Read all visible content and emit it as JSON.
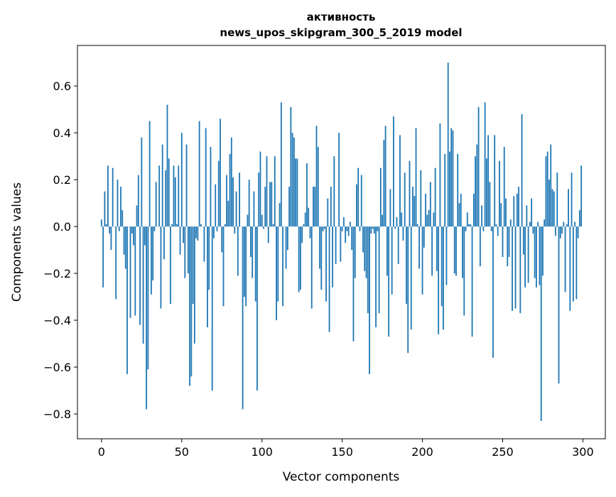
{
  "chart_data": {
    "type": "bar",
    "title": "активность",
    "subtitle": "news_upos_skipgram_300_5_2019 model",
    "xlabel": "Vector components",
    "ylabel": "Components values",
    "xlim": [
      -15,
      314
    ],
    "ylim": [
      -0.906,
      0.773
    ],
    "xticks": [
      0,
      50,
      100,
      150,
      200,
      250,
      300
    ],
    "xtick_labels": [
      "0",
      "50",
      "100",
      "150",
      "200",
      "250",
      "300"
    ],
    "yticks": [
      -0.8,
      -0.6,
      -0.4,
      -0.2,
      0.0,
      0.2,
      0.4,
      0.6
    ],
    "ytick_labels": [
      "−0.8",
      "−0.6",
      "−0.4",
      "−0.2",
      "0.0",
      "0.2",
      "0.4",
      "0.6"
    ],
    "grid": false,
    "color": "#1f77b4",
    "values": [
      0.03,
      -0.26,
      0.15,
      0.01,
      0.26,
      -0.03,
      -0.1,
      0.25,
      0.0,
      -0.31,
      0.2,
      -0.02,
      0.17,
      0.07,
      -0.12,
      -0.18,
      -0.63,
      0.0,
      -0.39,
      -0.03,
      -0.08,
      -0.38,
      0.09,
      0.22,
      -0.42,
      0.38,
      -0.5,
      -0.08,
      -0.78,
      -0.61,
      0.45,
      -0.29,
      -0.23,
      -0.02,
      0.19,
      0.0,
      0.26,
      -0.35,
      0.35,
      -0.14,
      0.24,
      0.52,
      0.29,
      -0.33,
      0.01,
      0.26,
      0.21,
      0.01,
      0.26,
      -0.12,
      0.4,
      -0.07,
      -0.22,
      0.35,
      -0.2,
      -0.68,
      -0.64,
      -0.33,
      -0.5,
      -0.05,
      -0.06,
      0.45,
      0.01,
      0.0,
      -0.15,
      0.42,
      -0.43,
      -0.27,
      0.34,
      -0.7,
      -0.05,
      0.18,
      -0.02,
      0.28,
      0.46,
      -0.11,
      -0.34,
      0.01,
      0.22,
      0.11,
      0.31,
      0.38,
      0.21,
      -0.03,
      0.15,
      -0.21,
      0.23,
      0.0,
      -0.78,
      -0.3,
      -0.34,
      0.05,
      0.2,
      -0.13,
      -0.22,
      0.15,
      -0.32,
      -0.7,
      0.23,
      0.32,
      0.05,
      -0.01,
      0.17,
      0.3,
      -0.07,
      0.19,
      0.19,
      0.01,
      0.3,
      -0.4,
      -0.32,
      0.1,
      0.53,
      -0.34,
      0.0,
      -0.18,
      -0.1,
      0.17,
      0.51,
      0.4,
      0.38,
      0.29,
      0.29,
      -0.28,
      -0.27,
      -0.07,
      0.01,
      0.06,
      0.27,
      0.08,
      -0.05,
      -0.35,
      0.17,
      0.17,
      0.43,
      0.34,
      -0.18,
      -0.27,
      -0.02,
      -0.01,
      -0.32,
      0.12,
      -0.45,
      0.17,
      -0.26,
      0.3,
      -0.16,
      0.0,
      0.4,
      -0.15,
      -0.02,
      0.04,
      -0.07,
      -0.02,
      -0.04,
      0.02,
      -0.1,
      -0.49,
      -0.22,
      0.18,
      0.25,
      -0.02,
      0.22,
      -0.11,
      -0.19,
      -0.22,
      -0.37,
      -0.63,
      -0.03,
      -0.01,
      -0.03,
      -0.43,
      -0.02,
      -0.37,
      0.25,
      0.05,
      0.37,
      0.43,
      -0.21,
      -0.47,
      0.16,
      -0.29,
      0.47,
      -0.01,
      0.04,
      -0.16,
      0.39,
      0.06,
      -0.06,
      0.23,
      -0.33,
      -0.54,
      0.28,
      -0.44,
      0.17,
      0.13,
      0.42,
      0.01,
      -0.18,
      0.24,
      -0.29,
      -0.09,
      0.14,
      0.05,
      0.07,
      0.19,
      -0.21,
      0.06,
      0.25,
      -0.19,
      -0.46,
      0.44,
      -0.34,
      -0.44,
      0.31,
      -0.25,
      0.7,
      0.32,
      0.42,
      0.41,
      -0.2,
      -0.21,
      0.31,
      0.1,
      0.14,
      -0.22,
      -0.38,
      -0.02,
      0.06,
      0.01,
      0.01,
      -0.47,
      0.14,
      0.3,
      0.35,
      0.51,
      -0.17,
      0.09,
      -0.02,
      0.53,
      0.29,
      0.39,
      0.19,
      -0.02,
      -0.56,
      0.39,
      0.01,
      -0.04,
      0.28,
      0.1,
      -0.13,
      0.34,
      0.12,
      -0.17,
      -0.13,
      0.03,
      -0.36,
      0.13,
      -0.35,
      0.14,
      0.17,
      -0.37,
      0.48,
      -0.12,
      -0.26,
      0.09,
      -0.24,
      0.02,
      0.12,
      -0.03,
      -0.22,
      -0.26,
      0.02,
      -0.25,
      -0.83,
      -0.21,
      0.03,
      0.3,
      0.32,
      0.2,
      0.35,
      0.16,
      0.15,
      -0.04,
      0.23,
      -0.67,
      -0.05,
      -0.03,
      0.02,
      -0.28,
      0.01,
      0.16,
      -0.36,
      0.23,
      -0.32,
      0.02,
      -0.31,
      -0.05,
      0.07,
      0.26
    ]
  }
}
